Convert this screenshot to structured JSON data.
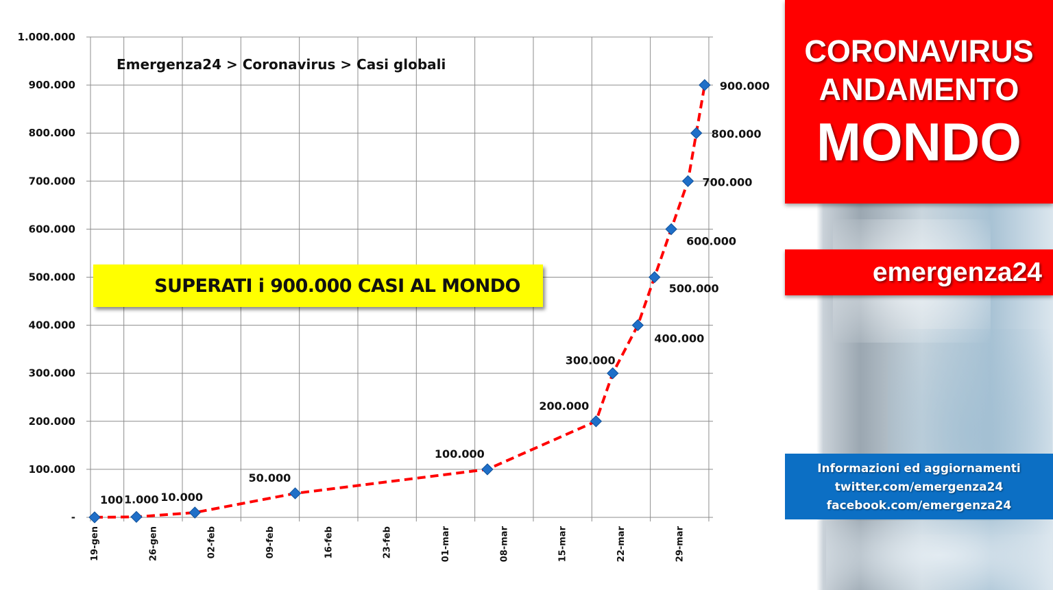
{
  "chart_data": {
    "type": "line",
    "title": "Emergenza24 > Coronavirus > Casi globali",
    "xlabel": "",
    "ylabel": "",
    "ylim": [
      0,
      1000000
    ],
    "y_ticks": [
      "-",
      "100.000",
      "200.000",
      "300.000",
      "400.000",
      "500.000",
      "600.000",
      "700.000",
      "800.000",
      "900.000",
      "1.000.000"
    ],
    "x_ticks": [
      "19-gen",
      "26-gen",
      "02-feb",
      "09-feb",
      "16-feb",
      "23-feb",
      "01-mar",
      "08-mar",
      "15-mar",
      "22-mar",
      "29-mar"
    ],
    "x_tick_days": [
      0,
      7,
      14,
      21,
      28,
      35,
      42,
      49,
      56,
      63,
      70
    ],
    "grid": true,
    "series": [
      {
        "name": "",
        "color": "#ff0000",
        "marker_color": "#1f6fc8",
        "points": [
          {
            "x": "19-gen",
            "day": 0,
            "y": 100,
            "label": "100"
          },
          {
            "x": "24-gen",
            "day": 5,
            "y": 1000,
            "label": "1.000"
          },
          {
            "x": "31-gen",
            "day": 12,
            "y": 10000,
            "label": "10.000"
          },
          {
            "x": "12-feb",
            "day": 24,
            "y": 50000,
            "label": "50.000"
          },
          {
            "x": "06-mar",
            "day": 47,
            "y": 100000,
            "label": "100.000"
          },
          {
            "x": "19-mar",
            "day": 60,
            "y": 200000,
            "label": "200.000"
          },
          {
            "x": "21-mar",
            "day": 62,
            "y": 300000,
            "label": "300.000"
          },
          {
            "x": "24-mar",
            "day": 65,
            "y": 400000,
            "label": "400.000"
          },
          {
            "x": "26-mar",
            "day": 67,
            "y": 500000,
            "label": "500.000"
          },
          {
            "x": "28-mar",
            "day": 69,
            "y": 600000,
            "label": "600.000"
          },
          {
            "x": "30-mar",
            "day": 71,
            "y": 700000,
            "label": "700.000"
          },
          {
            "x": "31-mar",
            "day": 72,
            "y": 800000,
            "label": "800.000"
          },
          {
            "x": "01-apr",
            "day": 73,
            "y": 900000,
            "label": "900.000"
          }
        ]
      }
    ]
  },
  "banner": {
    "text": "SUPERATI i 900.000 CASI AL MONDO"
  },
  "side": {
    "title_line1": "CORONAVIRUS",
    "title_line2": "ANDAMENTO",
    "title_line3": "MONDO",
    "brand": "emergenza24",
    "info_line1": "Informazioni ed aggiornamenti",
    "info_line2": "twitter.com/emergenza24",
    "info_line3": "facebook.com/emergenza24"
  },
  "colors": {
    "red": "#ff0000",
    "blue": "#0c6fc4",
    "yellow": "#ffff00"
  }
}
